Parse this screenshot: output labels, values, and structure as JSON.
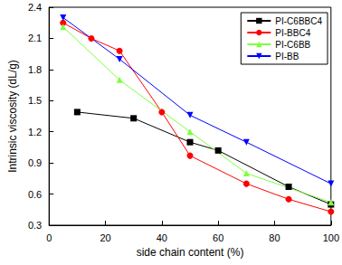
{
  "chart_data": {
    "type": "line",
    "x_label": "side chain content (%)",
    "y_label": "Intrinsic viscosity (dL/g)",
    "xlim": [
      0,
      100
    ],
    "xticks": [
      0,
      20,
      40,
      60,
      80,
      100
    ],
    "ylim": [
      0.3,
      2.4
    ],
    "yticks": [
      0.3,
      0.6,
      0.9,
      1.2,
      1.5,
      1.8,
      2.1,
      2.4
    ],
    "grid": false,
    "legend": "upper right",
    "series": [
      {
        "name": "PI-C6BBC4",
        "color": "#000000",
        "marker": "square",
        "x": [
          10,
          30,
          50,
          60,
          85,
          100
        ],
        "values": [
          1.39,
          1.33,
          1.1,
          1.02,
          0.67,
          0.5
        ]
      },
      {
        "name": "PI-BBC4",
        "color": "#ff0000",
        "marker": "circle",
        "x": [
          5,
          15,
          25,
          40,
          50,
          70,
          85,
          100
        ],
        "values": [
          2.25,
          2.1,
          1.98,
          1.39,
          0.97,
          0.7,
          0.55,
          0.43
        ]
      },
      {
        "name": "PI-C6BB",
        "color": "#7fff3f",
        "marker": "triangle",
        "x": [
          5,
          25,
          50,
          70,
          100
        ],
        "values": [
          2.21,
          1.7,
          1.2,
          0.8,
          0.52
        ]
      },
      {
        "name": "PI-BB",
        "color": "#0000ff",
        "marker": "triangle_down",
        "x": [
          5,
          25,
          50,
          70,
          100
        ],
        "values": [
          2.3,
          1.9,
          1.36,
          1.1,
          0.7
        ]
      }
    ]
  }
}
